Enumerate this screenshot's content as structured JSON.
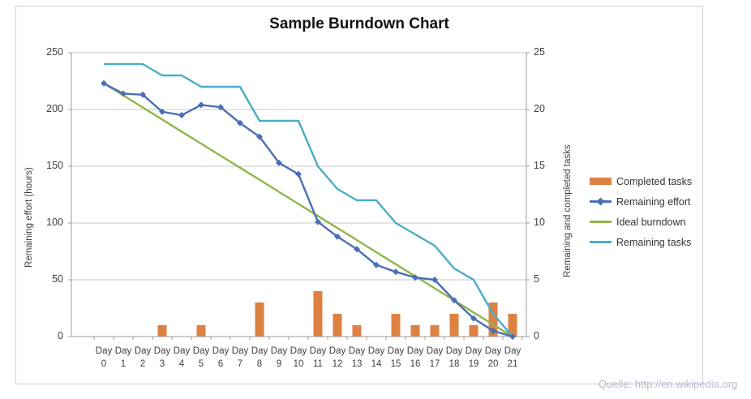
{
  "chart_data": {
    "type": "combo",
    "title": "Sample Burndown Chart",
    "categories": [
      "Day 0",
      "Day 1",
      "Day 2",
      "Day 3",
      "Day 4",
      "Day 5",
      "Day 6",
      "Day 7",
      "Day 8",
      "Day 9",
      "Day 10",
      "Day 11",
      "Day 12",
      "Day 13",
      "Day 14",
      "Day 15",
      "Day 16",
      "Day 17",
      "Day 18",
      "Day 19",
      "Day 20",
      "Day 21"
    ],
    "series": [
      {
        "name": "Completed tasks",
        "type": "bar",
        "axis": "right",
        "color": "#dd8243",
        "values": [
          0,
          0,
          0,
          1,
          0,
          1,
          0,
          0,
          3,
          0,
          0,
          4,
          2,
          1,
          0,
          2,
          1,
          1,
          2,
          1,
          3,
          2
        ]
      },
      {
        "name": "Remaining effort",
        "type": "line",
        "marker": "diamond",
        "axis": "left",
        "color": "#4a6fb5",
        "values": [
          223,
          214,
          213,
          198,
          195,
          204,
          202,
          188,
          176,
          153,
          143,
          101,
          88,
          77,
          63,
          57,
          52,
          50,
          32,
          16,
          5,
          0
        ]
      },
      {
        "name": "Ideal burndown",
        "type": "line",
        "marker": "none",
        "axis": "left",
        "color": "#92b44b",
        "values": [
          223,
          212.4,
          201.8,
          191.2,
          180.5,
          169.9,
          159.3,
          148.7,
          138.1,
          127.4,
          116.8,
          106.2,
          95.6,
          85,
          74.3,
          63.7,
          53.1,
          42.5,
          31.9,
          21.2,
          10.6,
          0
        ]
      },
      {
        "name": "Remaining tasks",
        "type": "line",
        "marker": "none",
        "axis": "right",
        "color": "#4bacc6",
        "values": [
          24,
          24,
          24,
          23,
          23,
          22,
          22,
          22,
          19,
          19,
          19,
          15,
          13,
          12,
          12,
          10,
          9,
          8,
          6,
          5,
          2,
          0
        ]
      }
    ],
    "axes": {
      "left": {
        "title": "Remaining effort (hours)",
        "min": 0,
        "max": 250,
        "ticks": [
          250,
          200,
          150,
          100,
          50,
          0
        ]
      },
      "right": {
        "title": "Remaining and  completed tasks",
        "min": 0,
        "max": 25,
        "ticks": [
          25,
          20,
          15,
          10,
          5,
          0
        ]
      }
    },
    "grid": true,
    "legend_position": "right"
  },
  "legend": {
    "items": [
      {
        "label": "Completed tasks",
        "swatch": "bar"
      },
      {
        "label": "Remaining effort",
        "swatch": "line-diamond"
      },
      {
        "label": "Ideal burndown",
        "swatch": "line"
      },
      {
        "label": "Remaining tasks",
        "swatch": "line"
      }
    ]
  },
  "footer": {
    "text": "Quelle: http://en.wikipedia.org"
  },
  "colors": {
    "bar_orange": "#dd8243",
    "effort_blue": "#4a6fb5",
    "ideal_green": "#92b44b",
    "tasks_teal": "#4bacc6",
    "gridline": "#c9c9c9",
    "axis_line": "#9b9b9b",
    "axis_text": "#3f3f3f",
    "title_text": "#111111",
    "footer_text": "#b7bacd",
    "frame_border": "#cfcfcf"
  }
}
